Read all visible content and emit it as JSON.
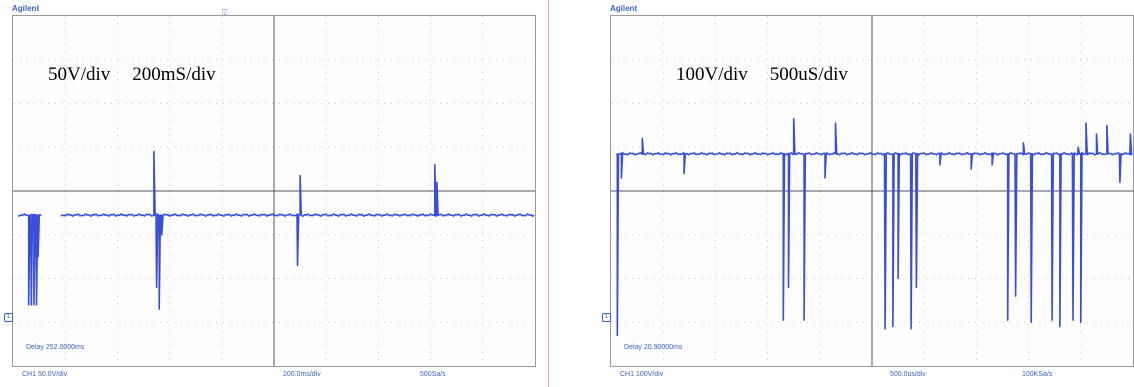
{
  "colors": {
    "trace": "#3a4fd8",
    "grid": "#c8c8c8",
    "axis": "#555555",
    "label": "#3a62c8"
  },
  "scopes": [
    {
      "brand": "Agilent",
      "overlay_volts": "50V/div",
      "overlay_time": "200mS/div",
      "delay": "Delay 252.0000ms",
      "channel": "CH1 50.0V/div",
      "timebase": "200.0ms/div",
      "sample_rate": "500Sa/s",
      "trigger_icon": "trigger-marker-icon",
      "ground_icon": "ground-marker-icon"
    },
    {
      "brand": "Agilent",
      "overlay_volts": "100V/div",
      "overlay_time": "500uS/div",
      "delay": "Delay 20.90000ms",
      "channel": "CH1 100V/div",
      "timebase": "500.0us/div",
      "sample_rate": "100KSa/s",
      "trigger_icon": "",
      "ground_icon": "ground-marker-icon"
    }
  ],
  "chart_data": [
    {
      "type": "line",
      "title": "",
      "xlabel": "",
      "ylabel": "",
      "x_divisions": 10,
      "y_divisions": 8,
      "xlim": [
        -5,
        5
      ],
      "ylim": [
        -4,
        4
      ],
      "grid": true,
      "baseline": -0.55,
      "series": [
        {
          "spikes": [
            {
              "x": -4.7,
              "y": -2.6
            },
            {
              "x": -4.65,
              "y": -2.6
            },
            {
              "x": -4.6,
              "y": -2.6
            },
            {
              "x": -4.55,
              "y": -2.6
            },
            {
              "x": -4.52,
              "y": -1.5
            },
            {
              "x": -2.3,
              "y": 0.9
            },
            {
              "x": -2.25,
              "y": -2.2
            },
            {
              "x": -2.2,
              "y": -2.7
            },
            {
              "x": -2.15,
              "y": -1.0
            },
            {
              "x": 0.45,
              "y": -1.7
            },
            {
              "x": 0.5,
              "y": 0.35
            },
            {
              "x": 3.08,
              "y": 0.6
            },
            {
              "x": 3.12,
              "y": 0.2
            }
          ],
          "gaps": [
            [
              -4.45,
              -4.1
            ]
          ]
        }
      ]
    },
    {
      "type": "line",
      "title": "",
      "xlabel": "",
      "ylabel": "",
      "x_divisions": 10,
      "y_divisions": 8,
      "xlim": [
        -5,
        5
      ],
      "ylim": [
        -4,
        4
      ],
      "grid": true,
      "baseline": 0.85,
      "series": [
        {
          "spikes": [
            {
              "x": -4.88,
              "y": -3.3
            },
            {
              "x": -4.8,
              "y": 0.3
            },
            {
              "x": -4.4,
              "y": 1.2
            },
            {
              "x": -3.6,
              "y": 0.4
            },
            {
              "x": -1.7,
              "y": -2.95
            },
            {
              "x": -1.6,
              "y": -2.2
            },
            {
              "x": -1.5,
              "y": 1.65
            },
            {
              "x": -1.3,
              "y": -2.95
            },
            {
              "x": -0.7,
              "y": 1.55
            },
            {
              "x": -0.9,
              "y": 0.3
            },
            {
              "x": 0.25,
              "y": -3.15
            },
            {
              "x": 0.4,
              "y": -3.1
            },
            {
              "x": 0.5,
              "y": -2.0
            },
            {
              "x": 0.75,
              "y": -3.15
            },
            {
              "x": 0.85,
              "y": -2.2
            },
            {
              "x": 1.3,
              "y": 0.6
            },
            {
              "x": 1.9,
              "y": 0.5
            },
            {
              "x": 2.3,
              "y": 0.6
            },
            {
              "x": 2.6,
              "y": -2.95
            },
            {
              "x": 2.75,
              "y": -2.4
            },
            {
              "x": 2.9,
              "y": 1.1
            },
            {
              "x": 3.05,
              "y": -3.0
            },
            {
              "x": 3.45,
              "y": -2.95
            },
            {
              "x": 3.6,
              "y": -3.1
            },
            {
              "x": 3.85,
              "y": -2.95
            },
            {
              "x": 4.0,
              "y": -3.0
            },
            {
              "x": 4.1,
              "y": 1.55
            },
            {
              "x": 3.95,
              "y": 1.0
            },
            {
              "x": 4.3,
              "y": 1.3
            },
            {
              "x": 4.5,
              "y": 1.5
            },
            {
              "x": 4.75,
              "y": 0.2
            },
            {
              "x": 4.95,
              "y": 1.3
            }
          ],
          "gaps": []
        }
      ]
    }
  ]
}
